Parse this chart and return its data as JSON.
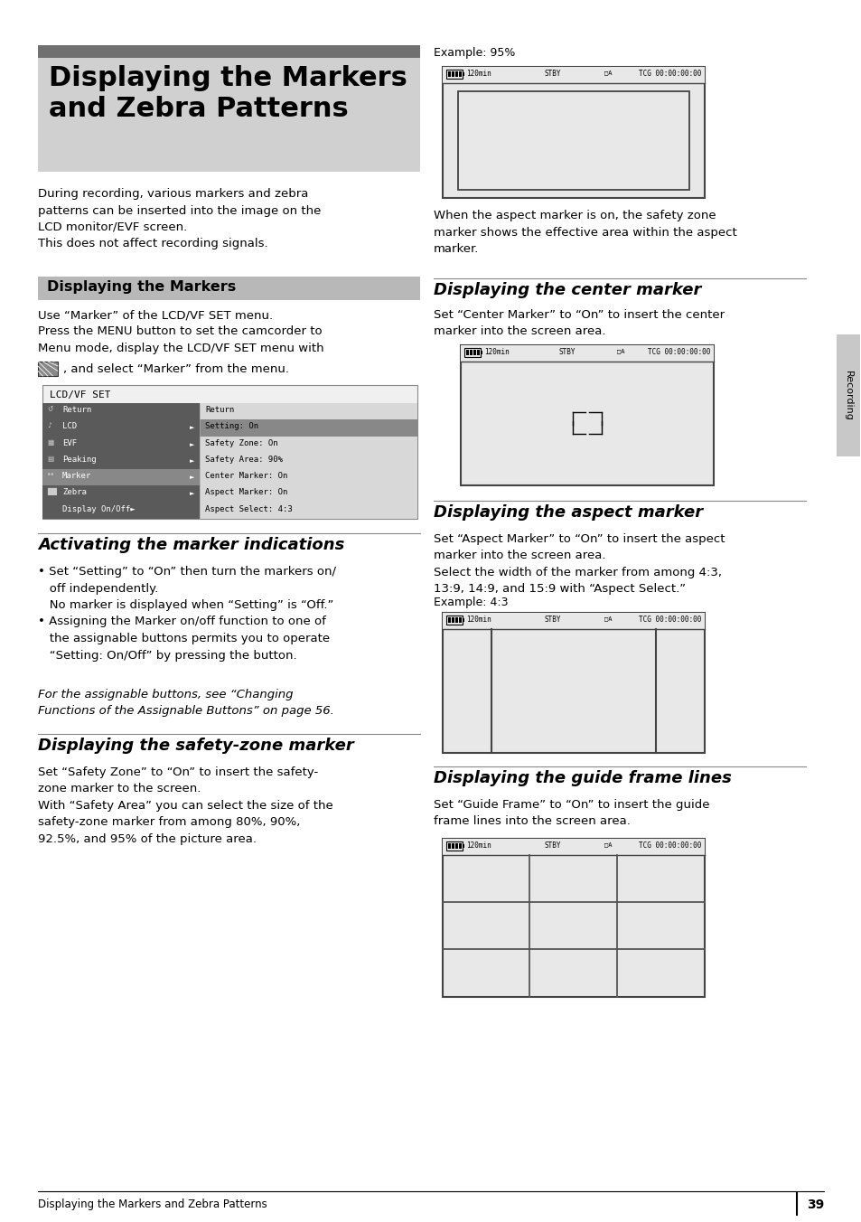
{
  "page_bg": "#ffffff",
  "page_width": 9.54,
  "page_height": 13.52,
  "main_title": "Displaying the Markers\nand Zebra Patterns",
  "section1_title": "Displaying the Markers",
  "section2_title": "Activating the marker indications",
  "section3_title": "Displaying the safety-zone marker",
  "section4_title": "Displaying the center marker",
  "section5_title": "Displaying the aspect marker",
  "section6_title": "Displaying the guide frame lines",
  "footer_text": "Displaying the Markers and Zebra Patterns",
  "footer_page": "39",
  "right_tab_text": "Recording"
}
